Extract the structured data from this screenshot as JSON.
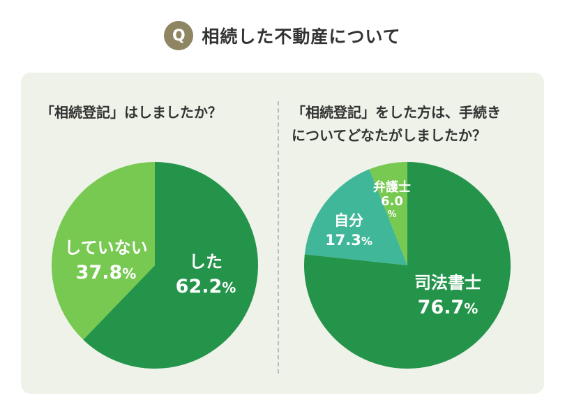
{
  "header": {
    "badge": "Q",
    "title": "相続した不動産について"
  },
  "chart_data": [
    {
      "type": "pie",
      "title": "「相続登記」はしましたか？",
      "slices": [
        {
          "label": "した",
          "value": 62.2,
          "value_text": "62.2",
          "unit": "%",
          "color": "#24944b"
        },
        {
          "label": "していない",
          "value": 37.8,
          "value_text": "37.8",
          "unit": "%",
          "color": "#77c952"
        }
      ]
    },
    {
      "type": "pie",
      "title_lines": [
        "「相続登記」をした方は、手続き",
        "についてどなたがしましたか？"
      ],
      "slices": [
        {
          "label": "司法書士",
          "value": 76.7,
          "value_text": "76.7",
          "unit": "%",
          "color": "#24944b"
        },
        {
          "label": "自分",
          "value": 17.3,
          "value_text": "17.3",
          "unit": "%",
          "color": "#40b798"
        },
        {
          "label": "弁護士",
          "value": 6.0,
          "value_text": "6.0",
          "unit": "%",
          "color": "#77c952"
        }
      ]
    }
  ]
}
